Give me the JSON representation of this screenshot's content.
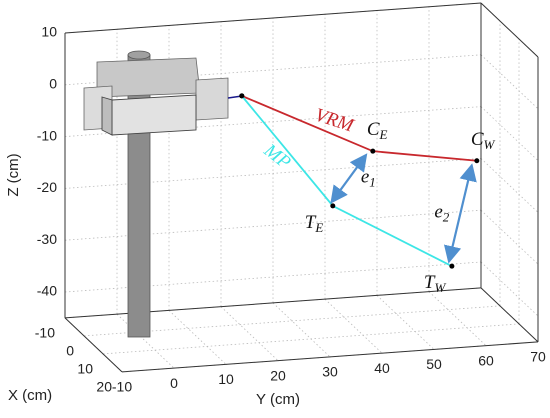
{
  "chart_data": {
    "type": "line3d",
    "xlabel": "X (cm)",
    "ylabel": "Y (cm)",
    "zlabel": "Z (cm)",
    "xlim": [
      -10,
      20
    ],
    "ylim": [
      -10,
      70
    ],
    "zlim": [
      -45,
      10
    ],
    "xticks": [
      -10,
      0,
      10,
      20
    ],
    "yticks": [
      -10,
      0,
      10,
      20,
      30,
      40,
      50,
      60,
      70
    ],
    "zticks": [
      -40,
      -30,
      -20,
      -10,
      0,
      10
    ],
    "grid": true,
    "series": [
      {
        "name": "VRM",
        "color": "#c8282d",
        "x": [
          -10,
          -10,
          -10
        ],
        "y": [
          24,
          49.2,
          69.2
        ],
        "z": [
          -4.6,
          -17.1,
          -20.4
        ],
        "point_labels": [
          null,
          {
            "text": "C",
            "sub": "E"
          },
          {
            "text": "C",
            "sub": "W"
          }
        ]
      },
      {
        "name": "MP",
        "color": "#3de6e6",
        "x": [
          -10,
          -10,
          -10
        ],
        "y": [
          24,
          41.5,
          64.4
        ],
        "z": [
          -4.6,
          -27.1,
          -40.4
        ],
        "point_labels": [
          null,
          {
            "text": "T",
            "sub": "E"
          },
          {
            "text": "T",
            "sub": "W"
          }
        ]
      }
    ],
    "annotations": [
      {
        "text": "e",
        "sub": "1"
      },
      {
        "text": "e",
        "sub": "2"
      }
    ]
  }
}
